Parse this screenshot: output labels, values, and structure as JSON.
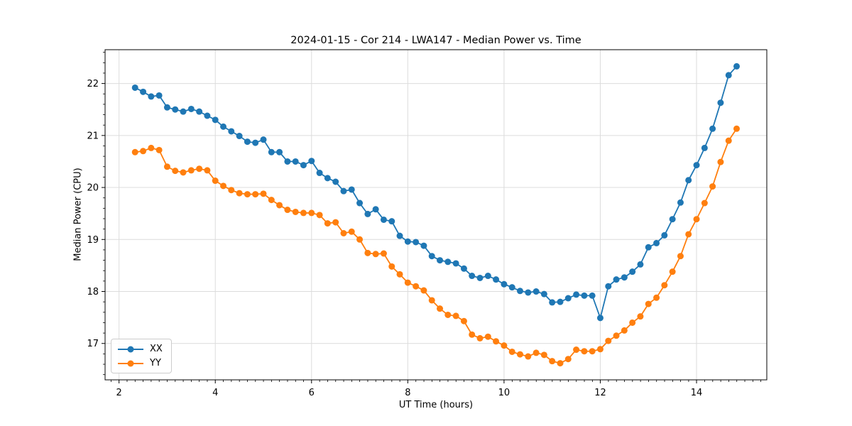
{
  "chart_data": {
    "type": "line",
    "title": "2024-01-15 - Cor 214 - LWA147 - Median Power vs. Time",
    "xlabel": "UT Time (hours)",
    "ylabel": "Median Power (CPU)",
    "xlim": [
      1.71,
      15.46
    ],
    "ylim": [
      16.3,
      22.65
    ],
    "x_ticks": [
      2,
      4,
      6,
      8,
      10,
      12,
      14
    ],
    "y_ticks": [
      17,
      18,
      19,
      20,
      21,
      22
    ],
    "x_minor_step": 0.1667,
    "y_minor_step": 0.2,
    "grid": true,
    "grid_color": "#dcdcdc",
    "legend_position": "lower-left",
    "x": [
      2.333,
      2.5,
      2.667,
      2.833,
      3.0,
      3.167,
      3.333,
      3.5,
      3.667,
      3.833,
      4.0,
      4.167,
      4.333,
      4.5,
      4.667,
      4.833,
      5.0,
      5.167,
      5.333,
      5.5,
      5.667,
      5.833,
      6.0,
      6.167,
      6.333,
      6.5,
      6.667,
      6.833,
      7.0,
      7.167,
      7.333,
      7.5,
      7.667,
      7.833,
      8.0,
      8.167,
      8.333,
      8.5,
      8.667,
      8.833,
      9.0,
      9.167,
      9.333,
      9.5,
      9.667,
      9.833,
      10.0,
      10.167,
      10.333,
      10.5,
      10.667,
      10.833,
      11.0,
      11.167,
      11.333,
      11.5,
      11.667,
      11.833,
      12.0,
      12.167,
      12.333,
      12.5,
      12.667,
      12.833,
      13.0,
      13.167,
      13.333,
      13.5,
      13.667,
      13.833,
      14.0,
      14.167,
      14.333,
      14.5,
      14.667,
      14.833
    ],
    "series": [
      {
        "name": "XX",
        "color": "#1f77b4",
        "values": [
          21.92,
          21.84,
          21.75,
          21.77,
          21.54,
          21.5,
          21.46,
          21.51,
          21.46,
          21.38,
          21.3,
          21.17,
          21.08,
          20.99,
          20.88,
          20.86,
          20.92,
          20.68,
          20.68,
          20.5,
          20.5,
          20.43,
          20.51,
          20.28,
          20.18,
          20.11,
          19.93,
          19.96,
          19.7,
          19.49,
          19.58,
          19.38,
          19.35,
          19.07,
          18.96,
          18.95,
          18.88,
          18.68,
          18.6,
          18.57,
          18.54,
          18.44,
          18.3,
          18.26,
          18.3,
          18.23,
          18.14,
          18.08,
          18.01,
          17.98,
          18.0,
          17.95,
          17.79,
          17.8,
          17.87,
          17.94,
          17.92,
          17.92,
          17.49,
          18.1,
          18.23,
          18.27,
          18.38,
          18.52,
          18.85,
          18.93,
          19.08,
          19.39,
          19.71,
          20.14,
          20.43,
          20.76,
          21.13,
          21.63,
          22.16,
          22.33
        ]
      },
      {
        "name": "YY",
        "color": "#ff7f0e",
        "values": [
          20.68,
          20.7,
          20.76,
          20.72,
          20.4,
          20.32,
          20.29,
          20.33,
          20.36,
          20.33,
          20.13,
          20.03,
          19.95,
          19.89,
          19.87,
          19.87,
          19.88,
          19.76,
          19.66,
          19.57,
          19.53,
          19.51,
          19.51,
          19.47,
          19.31,
          19.33,
          19.12,
          19.15,
          19.0,
          18.74,
          18.72,
          18.73,
          18.48,
          18.33,
          18.17,
          18.1,
          18.02,
          17.83,
          17.67,
          17.55,
          17.53,
          17.43,
          17.17,
          17.1,
          17.13,
          17.04,
          16.96,
          16.84,
          16.79,
          16.75,
          16.82,
          16.78,
          16.66,
          16.62,
          16.7,
          16.88,
          16.85,
          16.85,
          16.89,
          17.05,
          17.15,
          17.25,
          17.4,
          17.52,
          17.76,
          17.88,
          18.12,
          18.38,
          18.68,
          19.1,
          19.39,
          19.7,
          20.02,
          20.49,
          20.9,
          21.13
        ]
      }
    ]
  }
}
